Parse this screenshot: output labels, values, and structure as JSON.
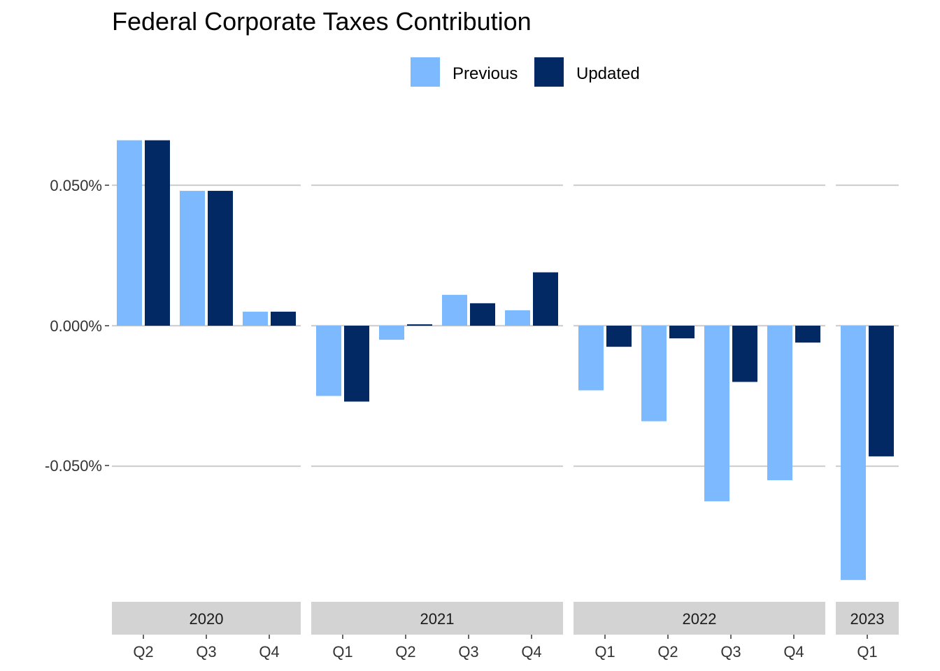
{
  "chart_data": {
    "type": "bar",
    "title": "Federal Corporate Taxes Contribution",
    "xlabel": "",
    "ylabel": "",
    "ylim": [
      -0.091,
      0.066
    ],
    "y_ticks": [
      "0.050%",
      "0.000%",
      "-0.050%"
    ],
    "y_tick_values": [
      0.05,
      0.0,
      -0.05
    ],
    "grid": true,
    "legend": {
      "position": "top",
      "items": [
        "Previous",
        "Updated"
      ]
    },
    "colors": {
      "Previous": "#7cb9ff",
      "Updated": "#022964",
      "strip": "#d3d3d3",
      "grid": "#d0d0d0"
    },
    "facets": [
      {
        "label": "2020",
        "categories": [
          "Q2",
          "Q3",
          "Q4"
        ],
        "series": [
          {
            "name": "Previous",
            "values": [
              0.066,
              0.048,
              0.005
            ]
          },
          {
            "name": "Updated",
            "values": [
              0.066,
              0.048,
              0.005
            ]
          }
        ]
      },
      {
        "label": "2021",
        "categories": [
          "Q1",
          "Q2",
          "Q3",
          "Q4"
        ],
        "series": [
          {
            "name": "Previous",
            "values": [
              -0.025,
              -0.005,
              0.011,
              0.0055
            ]
          },
          {
            "name": "Updated",
            "values": [
              -0.027,
              0.0005,
              0.008,
              0.019
            ]
          }
        ]
      },
      {
        "label": "2022",
        "categories": [
          "Q1",
          "Q2",
          "Q3",
          "Q4"
        ],
        "series": [
          {
            "name": "Previous",
            "values": [
              -0.023,
              -0.034,
              -0.0625,
              -0.055
            ]
          },
          {
            "name": "Updated",
            "values": [
              -0.0075,
              -0.0045,
              -0.02,
              -0.006
            ]
          }
        ]
      },
      {
        "label": "2023",
        "categories": [
          "Q1"
        ],
        "series": [
          {
            "name": "Previous",
            "values": [
              -0.0905
            ]
          },
          {
            "name": "Updated",
            "values": [
              -0.0465
            ]
          }
        ]
      }
    ]
  }
}
